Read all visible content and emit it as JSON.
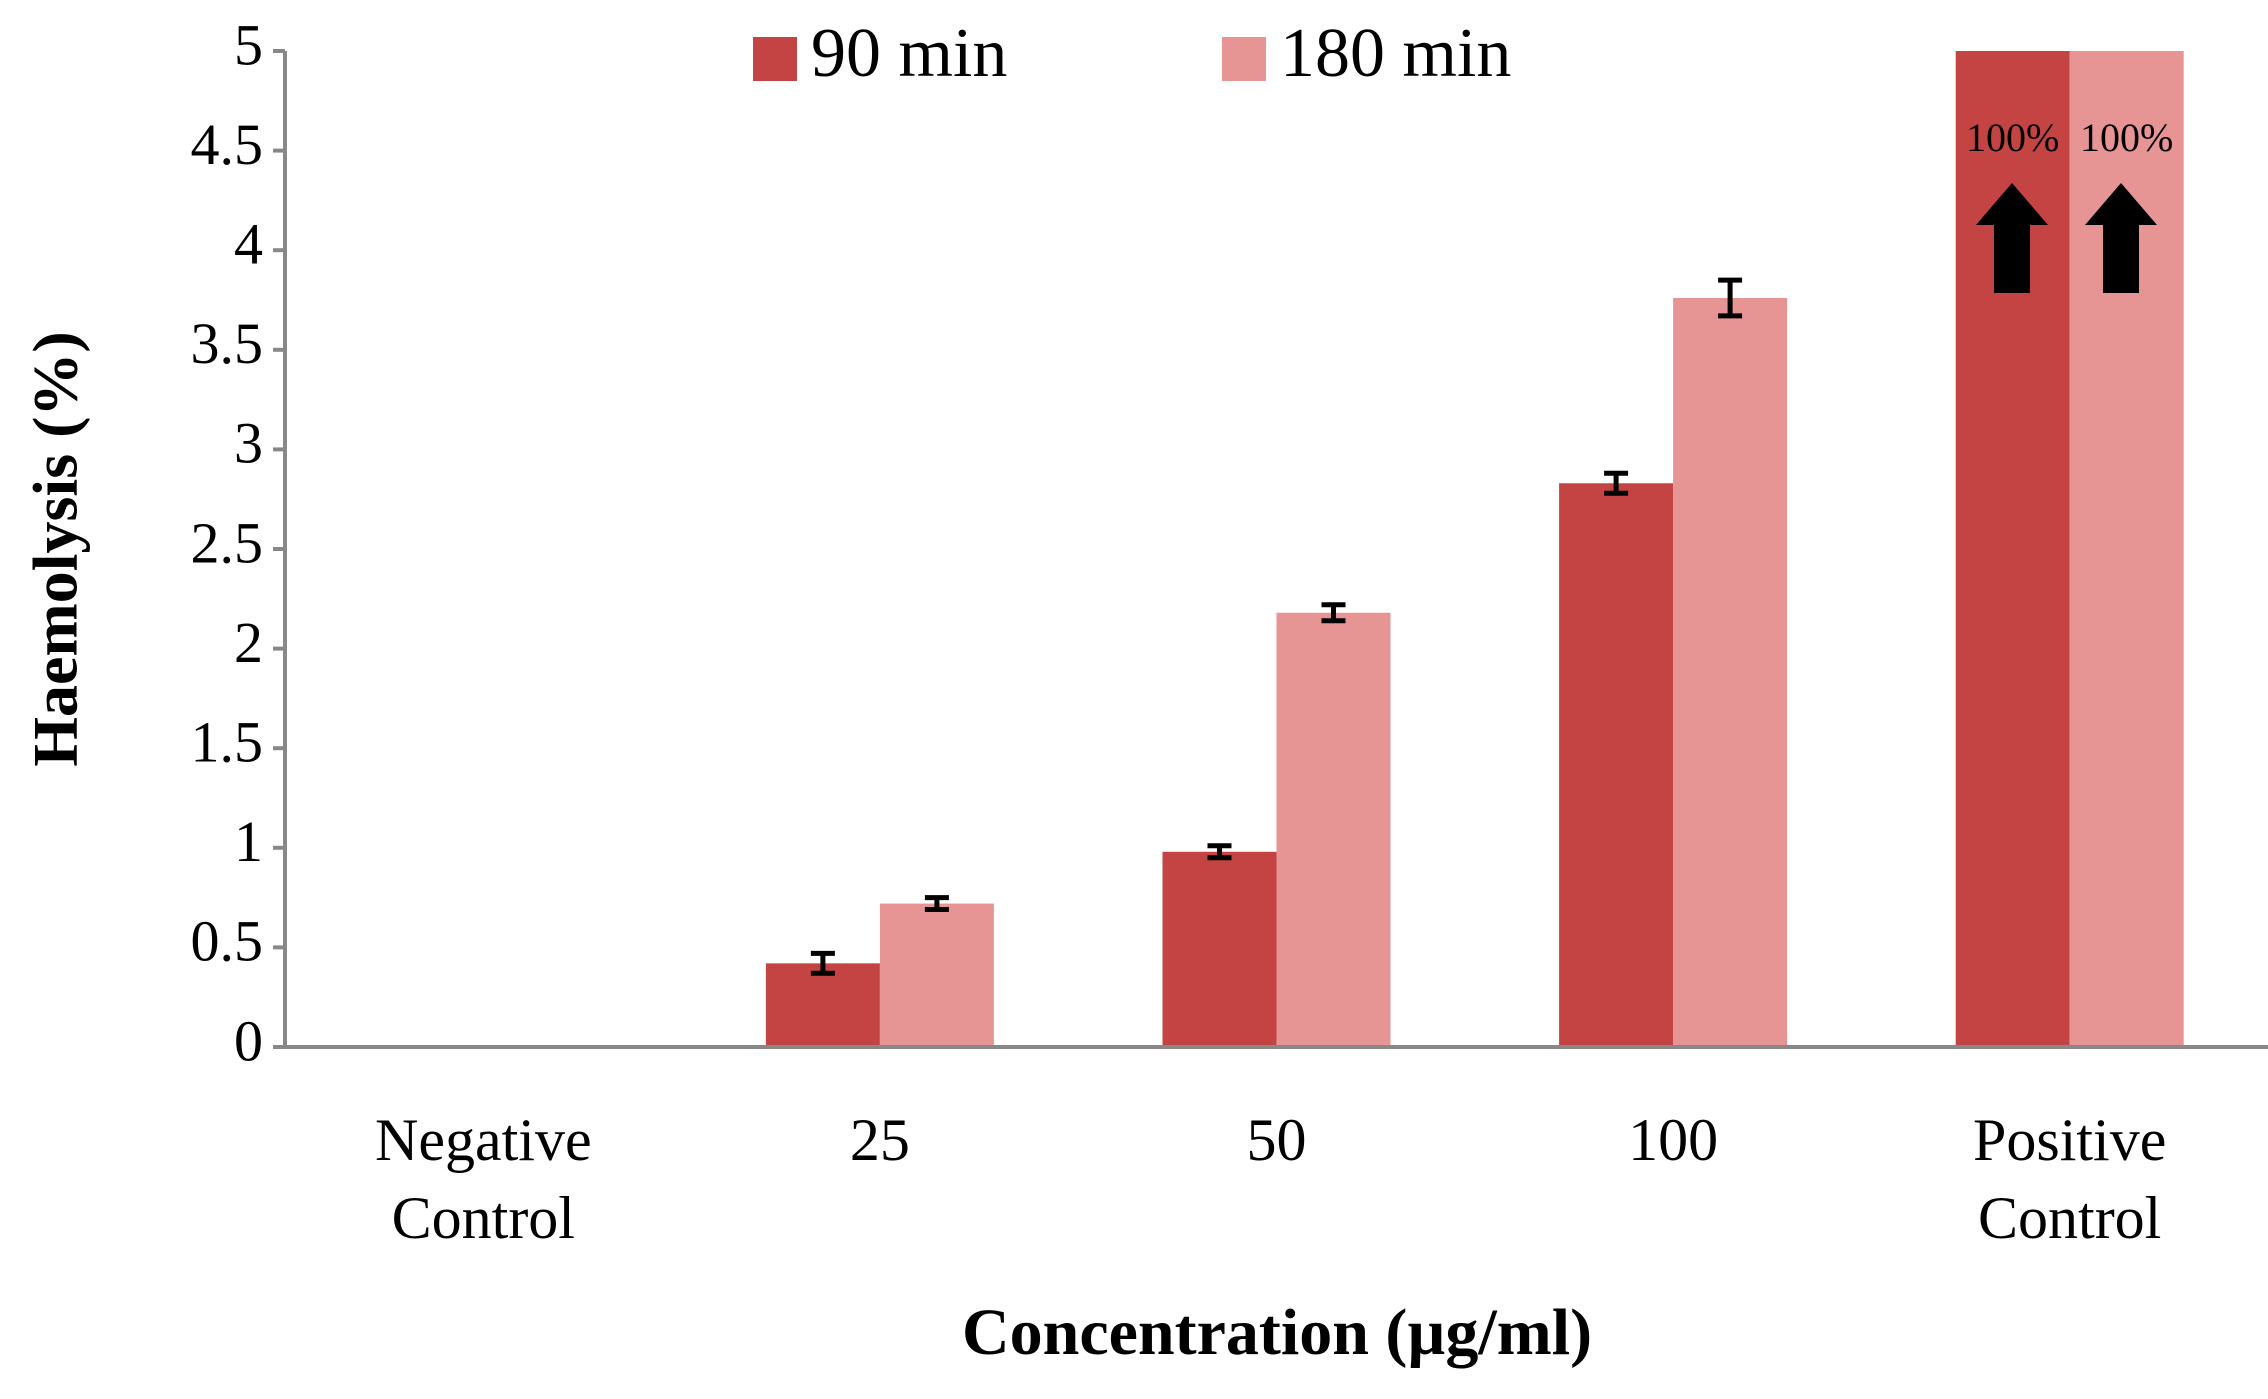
{
  "chart_data": {
    "type": "bar",
    "x_label": "Concentration (µg/ml)",
    "y_label": "Haemolysis (%)",
    "categories": [
      "Negative Control",
      "25",
      "50",
      "100",
      "Positive Control"
    ],
    "series": [
      {
        "name": "90 min",
        "color": "#c44444",
        "values": [
          0,
          0.42,
          0.98,
          2.83,
          100
        ],
        "errors": [
          0,
          0.05,
          0.03,
          0.05,
          null
        ],
        "value_labels": [
          null,
          null,
          null,
          null,
          "100%"
        ]
      },
      {
        "name": "180 min",
        "color": "#e79494",
        "values": [
          0,
          0.72,
          2.18,
          3.76,
          100
        ],
        "errors": [
          0,
          0.03,
          0.04,
          0.09,
          null
        ],
        "value_labels": [
          null,
          null,
          null,
          null,
          "100%"
        ]
      }
    ],
    "ylim": [
      0,
      5
    ],
    "yticks": [
      0,
      0.5,
      1,
      1.5,
      2,
      2.5,
      3,
      3.5,
      4,
      4.5,
      5
    ],
    "legend": "top"
  }
}
